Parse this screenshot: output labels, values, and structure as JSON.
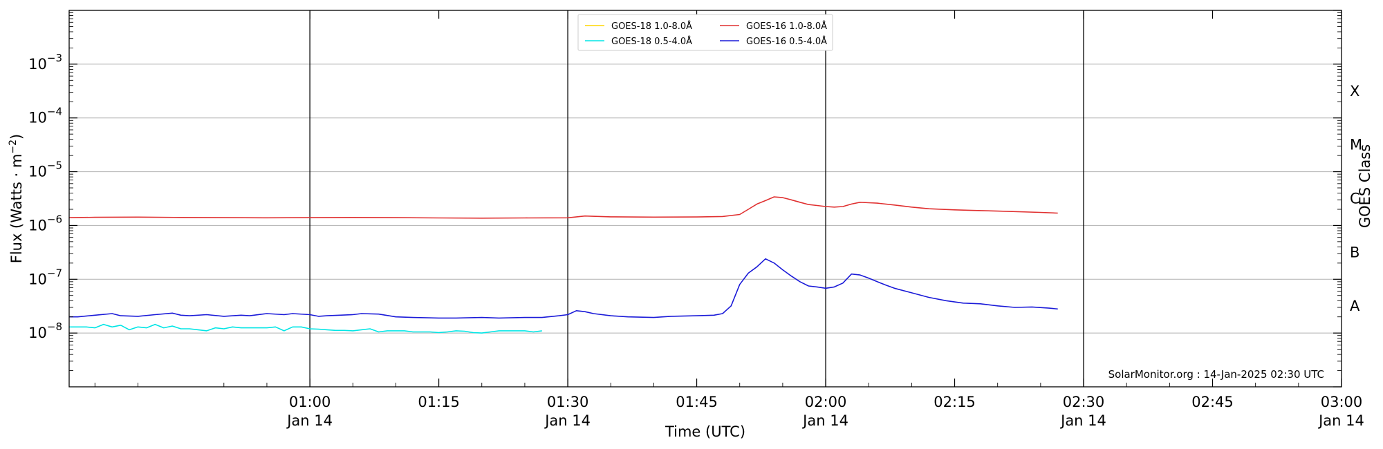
{
  "chart_data": {
    "type": "line",
    "xlabel": "Time (UTC)",
    "ylabel_main": "Flux (Watts · m",
    "ylabel_sup": "−2",
    "ylabel_close": ")",
    "y2label": "GOES Class",
    "yscale": "log",
    "ylim": [
      1e-09,
      0.01
    ],
    "xlim": [
      "00:32",
      "03:00"
    ],
    "x_ticks": [
      {
        "t": "01:00",
        "label": "01:00",
        "sub": "Jan 14"
      },
      {
        "t": "01:15",
        "label": "01:15",
        "sub": ""
      },
      {
        "t": "01:30",
        "label": "01:30",
        "sub": "Jan 14"
      },
      {
        "t": "01:45",
        "label": "01:45",
        "sub": ""
      },
      {
        "t": "02:00",
        "label": "02:00",
        "sub": "Jan 14"
      },
      {
        "t": "02:15",
        "label": "02:15",
        "sub": ""
      },
      {
        "t": "02:30",
        "label": "02:30",
        "sub": "Jan 14"
      },
      {
        "t": "02:45",
        "label": "02:45",
        "sub": ""
      },
      {
        "t": "03:00",
        "label": "03:00",
        "sub": "Jan 14"
      }
    ],
    "vertical_lines": [
      "01:00",
      "01:30",
      "02:00",
      "02:30"
    ],
    "y_ticks": [
      {
        "exp": -8,
        "base": "10",
        "sup": "−8"
      },
      {
        "exp": -7,
        "base": "10",
        "sup": "−7"
      },
      {
        "exp": -6,
        "base": "10",
        "sup": "−6"
      },
      {
        "exp": -5,
        "base": "10",
        "sup": "−5"
      },
      {
        "exp": -4,
        "base": "10",
        "sup": "−4"
      },
      {
        "exp": -3,
        "base": "10",
        "sup": "−3"
      }
    ],
    "grid_y": true,
    "goes_classes": [
      {
        "label": "A",
        "exp": -7.5
      },
      {
        "label": "B",
        "exp": -6.5
      },
      {
        "label": "C",
        "exp": -5.5
      },
      {
        "label": "M",
        "exp": -4.5
      },
      {
        "label": "X",
        "exp": -3.5
      }
    ],
    "legend_position": "top-center",
    "series": [
      {
        "name": "GOES-18 1.0-8.0Å",
        "color": "#ffd700",
        "x": [],
        "y": []
      },
      {
        "name": "GOES-18 0.5-4.0Å",
        "color": "#00e5e5",
        "x": [
          "00:32",
          "00:33",
          "00:34",
          "00:35",
          "00:36",
          "00:37",
          "00:38",
          "00:39",
          "00:40",
          "00:41",
          "00:42",
          "00:43",
          "00:44",
          "00:45",
          "00:46",
          "00:47",
          "00:48",
          "00:49",
          "00:50",
          "00:51",
          "00:52",
          "00:53",
          "00:54",
          "00:55",
          "00:56",
          "00:57",
          "00:58",
          "00:59",
          "01:00",
          "01:01",
          "01:02",
          "01:03",
          "01:04",
          "01:05",
          "01:06",
          "01:07",
          "01:08",
          "01:09",
          "01:10",
          "01:11",
          "01:12",
          "01:13",
          "01:14",
          "01:15",
          "01:16",
          "01:17",
          "01:18",
          "01:19",
          "01:20",
          "01:21",
          "01:22",
          "01:23",
          "01:24",
          "01:25",
          "01:26",
          "01:27"
        ],
        "y": [
          1.3e-08,
          1.3e-08,
          1.3e-08,
          1.25e-08,
          1.45e-08,
          1.3e-08,
          1.4e-08,
          1.15e-08,
          1.3e-08,
          1.25e-08,
          1.45e-08,
          1.25e-08,
          1.35e-08,
          1.2e-08,
          1.2e-08,
          1.15e-08,
          1.1e-08,
          1.25e-08,
          1.2e-08,
          1.3e-08,
          1.25e-08,
          1.25e-08,
          1.25e-08,
          1.25e-08,
          1.3e-08,
          1.1e-08,
          1.3e-08,
          1.3e-08,
          1.2e-08,
          1.18e-08,
          1.15e-08,
          1.12e-08,
          1.12e-08,
          1.1e-08,
          1.15e-08,
          1.2e-08,
          1.05e-08,
          1.1e-08,
          1.1e-08,
          1.1e-08,
          1.05e-08,
          1.05e-08,
          1.05e-08,
          1.02e-08,
          1.05e-08,
          1.1e-08,
          1.08e-08,
          1.02e-08,
          1e-08,
          1.05e-08,
          1.1e-08,
          1.1e-08,
          1.1e-08,
          1.1e-08,
          1.05e-08,
          1.1e-08
        ]
      },
      {
        "name": "GOES-16 1.0-8.0Å",
        "color": "#e03030",
        "x": [
          "00:32",
          "00:35",
          "00:40",
          "00:45",
          "00:50",
          "00:55",
          "01:00",
          "01:05",
          "01:10",
          "01:15",
          "01:20",
          "01:25",
          "01:30",
          "01:32",
          "01:35",
          "01:40",
          "01:45",
          "01:48",
          "01:50",
          "01:51",
          "01:52",
          "01:53",
          "01:54",
          "01:55",
          "01:56",
          "01:57",
          "01:58",
          "01:59",
          "02:00",
          "02:01",
          "02:02",
          "02:03",
          "02:04",
          "02:05",
          "02:06",
          "02:08",
          "02:10",
          "02:12",
          "02:15",
          "02:20",
          "02:25",
          "02:27"
        ],
        "y": [
          1.4e-06,
          1.42e-06,
          1.43e-06,
          1.41e-06,
          1.4e-06,
          1.39e-06,
          1.4e-06,
          1.41e-06,
          1.4e-06,
          1.38e-06,
          1.37e-06,
          1.38e-06,
          1.39e-06,
          1.5e-06,
          1.45e-06,
          1.43e-06,
          1.44e-06,
          1.47e-06,
          1.6e-06,
          2e-06,
          2.5e-06,
          2.9e-06,
          3.4e-06,
          3.3e-06,
          3e-06,
          2.7e-06,
          2.45e-06,
          2.35e-06,
          2.25e-06,
          2.2e-06,
          2.25e-06,
          2.5e-06,
          2.7e-06,
          2.65e-06,
          2.6e-06,
          2.4e-06,
          2.2e-06,
          2.05e-06,
          1.95e-06,
          1.85e-06,
          1.75e-06,
          1.7e-06
        ]
      },
      {
        "name": "GOES-16 0.5-4.0Å",
        "color": "#1a1ad8",
        "x": [
          "00:32",
          "00:33",
          "00:35",
          "00:37",
          "00:38",
          "00:40",
          "00:42",
          "00:44",
          "00:45",
          "00:46",
          "00:48",
          "00:50",
          "00:52",
          "00:53",
          "00:55",
          "00:57",
          "00:58",
          "01:00",
          "01:01",
          "01:02",
          "01:05",
          "01:06",
          "01:08",
          "01:10",
          "01:12",
          "01:15",
          "01:17",
          "01:20",
          "01:22",
          "01:25",
          "01:27",
          "01:29",
          "01:30",
          "01:31",
          "01:32",
          "01:33",
          "01:35",
          "01:37",
          "01:40",
          "01:42",
          "01:45",
          "01:47",
          "01:48",
          "01:49",
          "01:50",
          "01:51",
          "01:52",
          "01:53",
          "01:54",
          "01:55",
          "01:56",
          "01:57",
          "01:58",
          "01:59",
          "02:00",
          "02:01",
          "02:02",
          "02:03",
          "02:04",
          "02:05",
          "02:06",
          "02:07",
          "02:08",
          "02:10",
          "02:12",
          "02:14",
          "02:16",
          "02:18",
          "02:20",
          "02:22",
          "02:24",
          "02:26",
          "02:27"
        ],
        "y": [
          2e-08,
          2e-08,
          2.15e-08,
          2.3e-08,
          2.1e-08,
          2.05e-08,
          2.2e-08,
          2.35e-08,
          2.15e-08,
          2.1e-08,
          2.2e-08,
          2.05e-08,
          2.15e-08,
          2.1e-08,
          2.3e-08,
          2.2e-08,
          2.3e-08,
          2.2e-08,
          2.05e-08,
          2.1e-08,
          2.2e-08,
          2.3e-08,
          2.25e-08,
          2e-08,
          1.95e-08,
          1.9e-08,
          1.9e-08,
          1.95e-08,
          1.9e-08,
          1.95e-08,
          1.95e-08,
          2.1e-08,
          2.2e-08,
          2.6e-08,
          2.5e-08,
          2.3e-08,
          2.1e-08,
          2e-08,
          1.95e-08,
          2.05e-08,
          2.1e-08,
          2.15e-08,
          2.3e-08,
          3.2e-08,
          8e-08,
          1.3e-07,
          1.7e-07,
          2.4e-07,
          2e-07,
          1.5e-07,
          1.15e-07,
          9e-08,
          7.5e-08,
          7.2e-08,
          6.8e-08,
          7.2e-08,
          8.5e-08,
          1.25e-07,
          1.2e-07,
          1.05e-07,
          9e-08,
          7.8e-08,
          6.8e-08,
          5.6e-08,
          4.6e-08,
          4e-08,
          3.6e-08,
          3.5e-08,
          3.2e-08,
          3e-08,
          3.05e-08,
          2.9e-08,
          2.8e-08
        ]
      }
    ],
    "credit": "SolarMonitor.org : 14-Jan-2025 02:30 UTC"
  }
}
